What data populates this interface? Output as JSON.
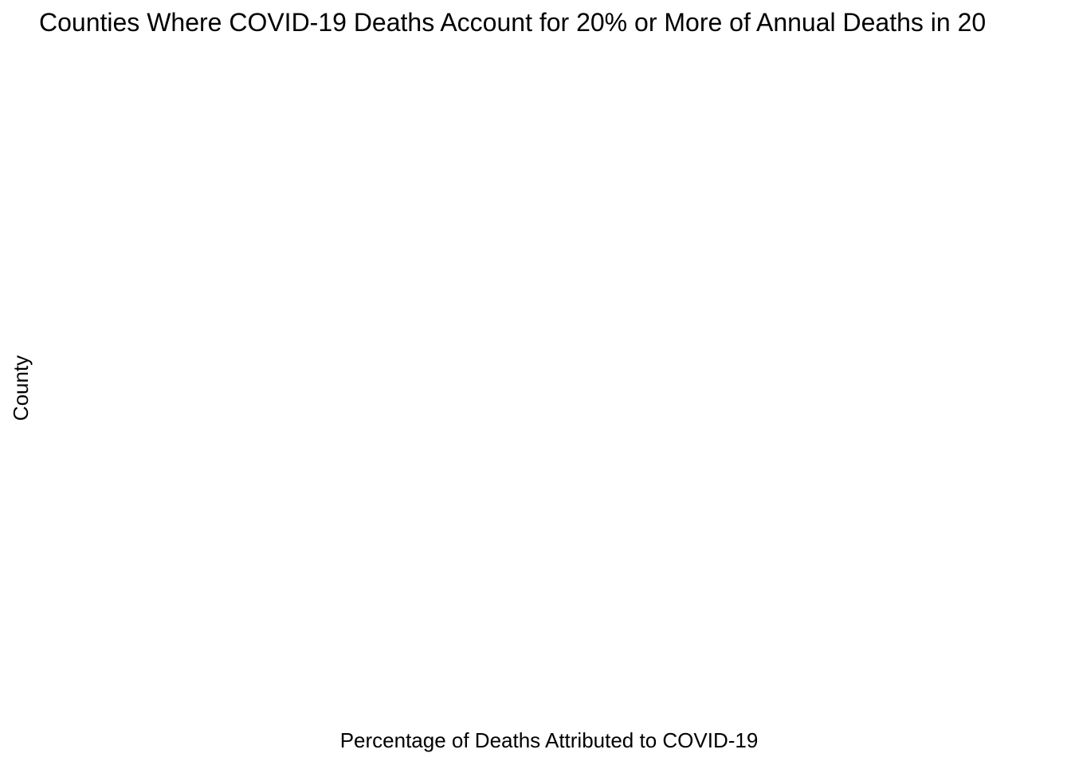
{
  "chart_data": {
    "type": "bar",
    "orientation": "horizontal",
    "title": "Counties Where COVID-19 Deaths Account for 20% or More of Annual Deaths in 20",
    "xlabel": "Percentage of Deaths Attributed to COVID-19",
    "ylabel": "County",
    "categories": [],
    "values": [],
    "grid": false,
    "legend": "none"
  }
}
